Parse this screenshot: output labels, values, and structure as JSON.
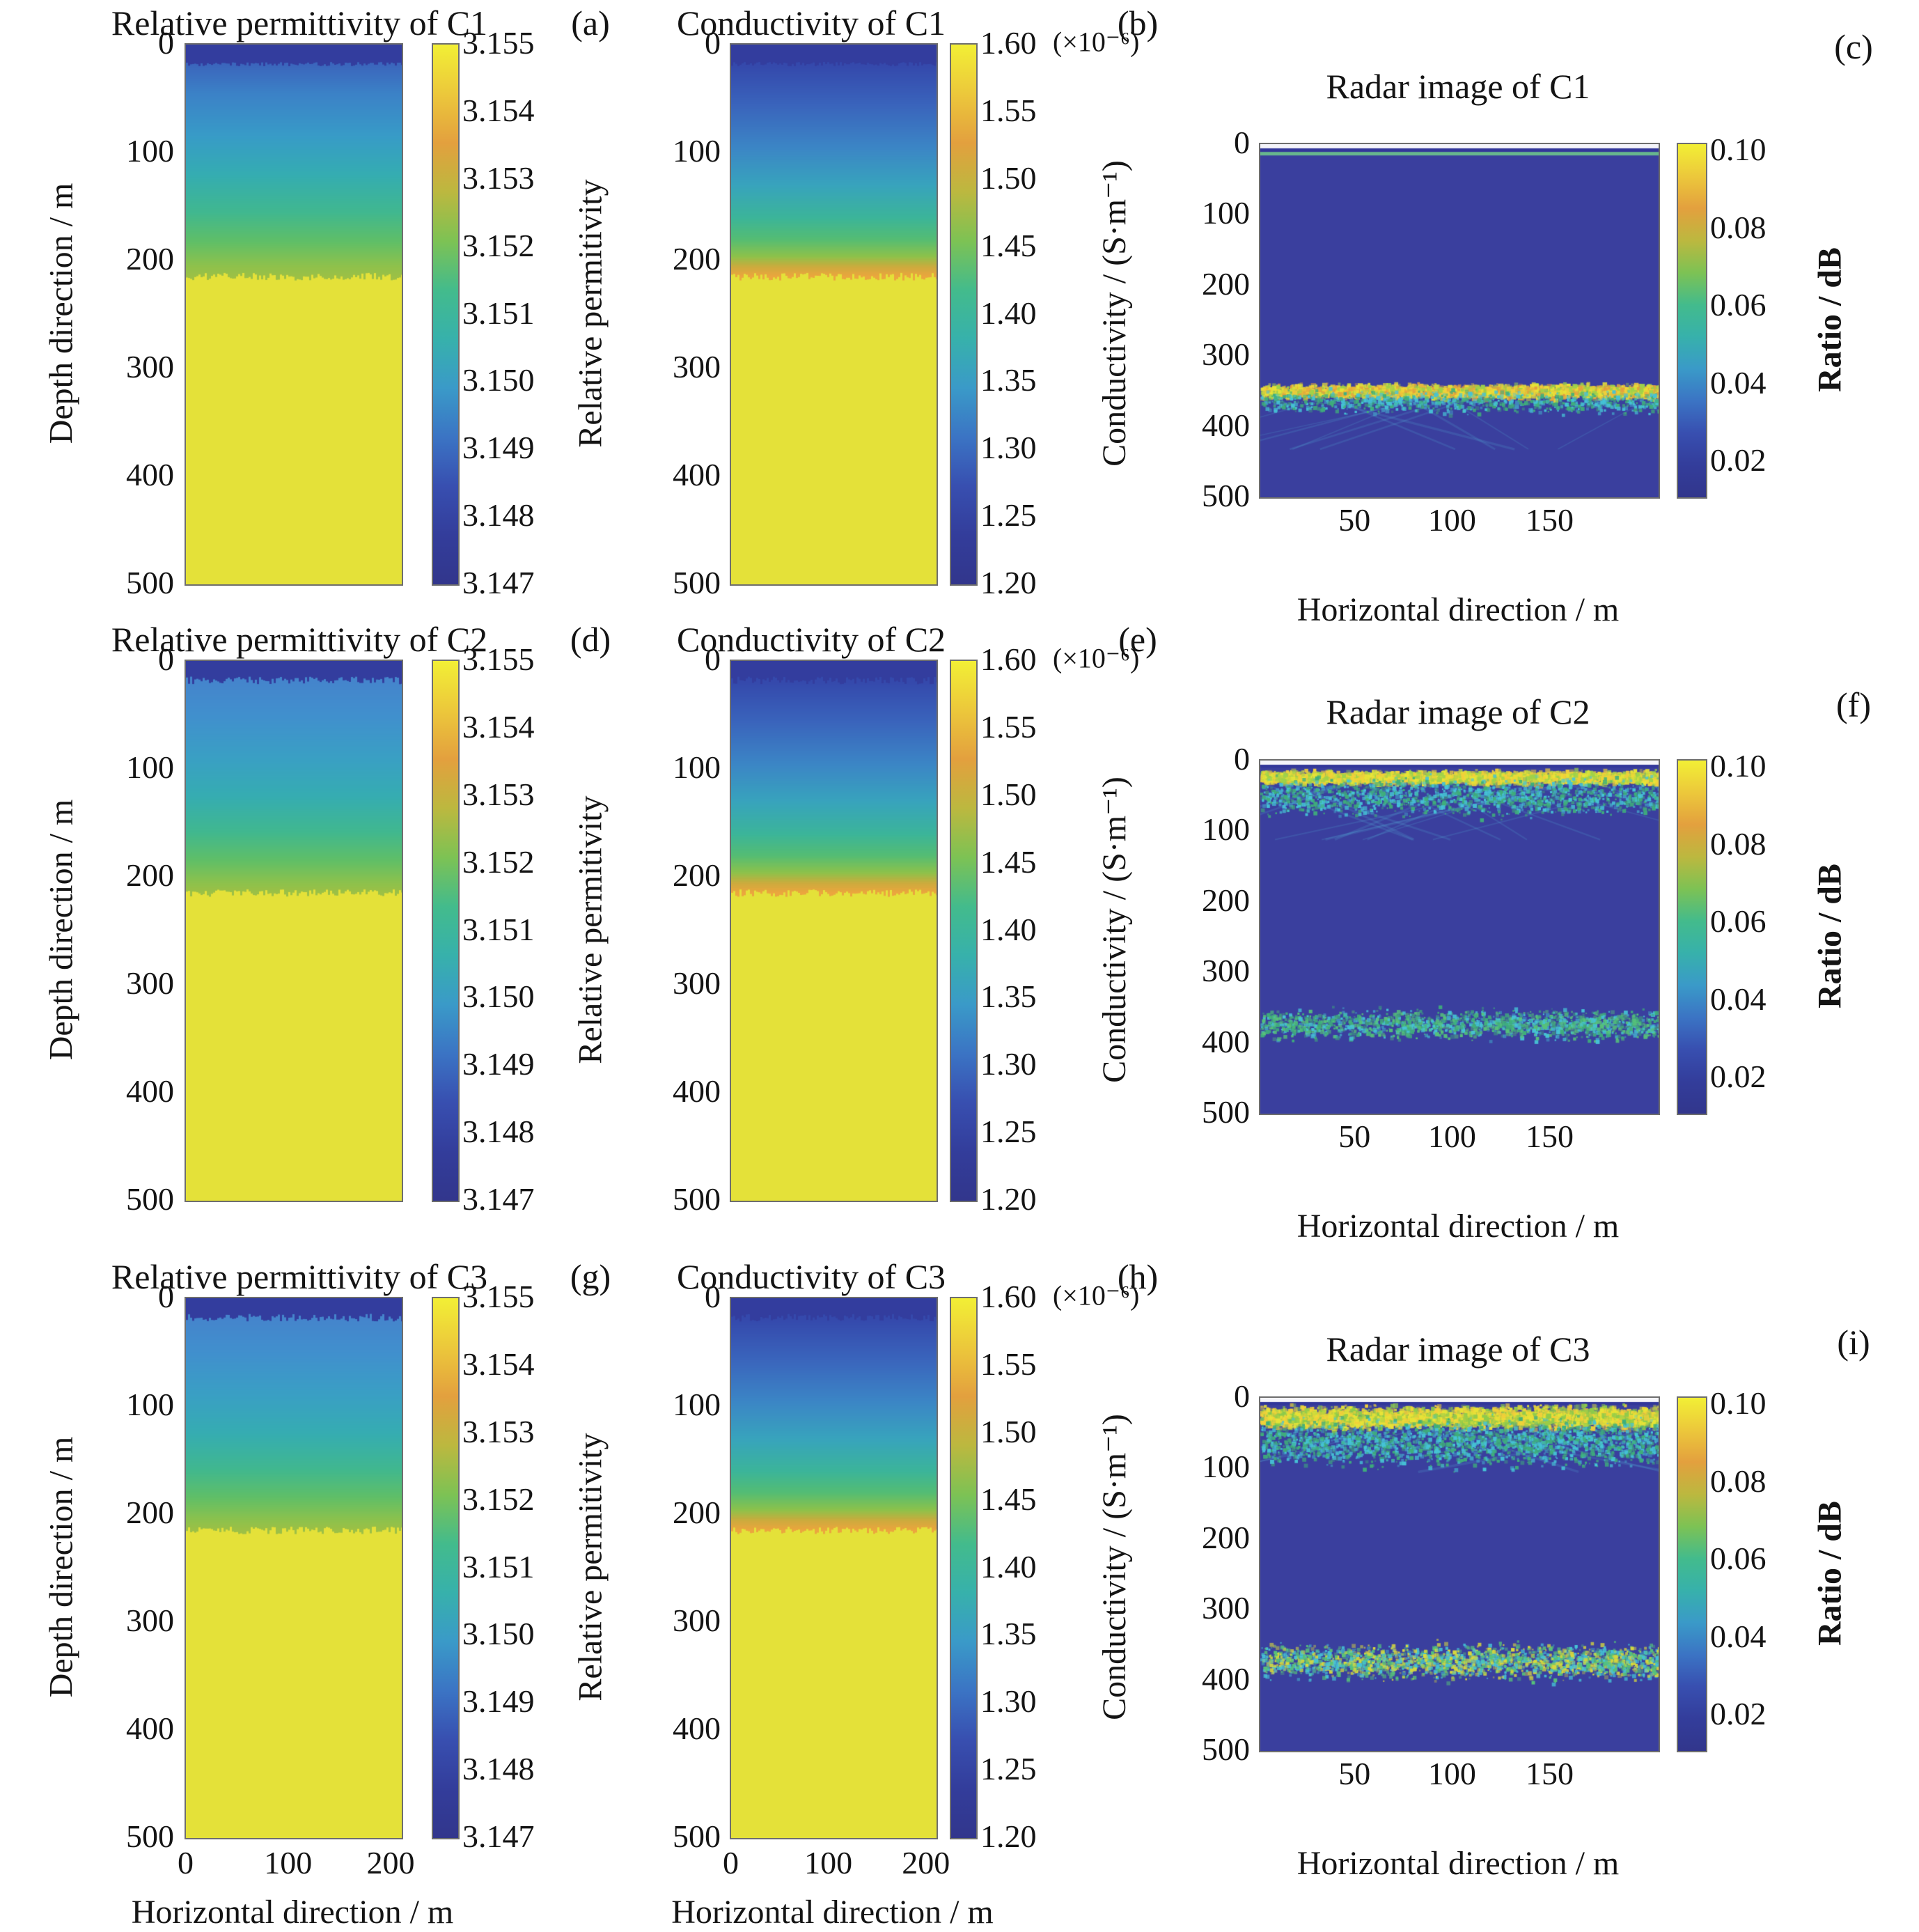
{
  "figure": {
    "background": "#ffffff",
    "description": "3x3 grid of simulated subsurface model heatmaps and radar images for cases C1, C2, C3"
  },
  "colormap": [
    "#f2ef35",
    "#ecc83b",
    "#e3a03e",
    "#bcb83f",
    "#7dc254",
    "#43bb8c",
    "#37b1ab",
    "#3a9ac8",
    "#3b74c4",
    "#384fb0",
    "#333d9b",
    "#32368c"
  ],
  "chart_data": [
    {
      "panel_letter": "(a)",
      "title": "Relative permittivity of C1",
      "type": "heatmap",
      "grid": {
        "row": 0,
        "col": 0
      },
      "x_axis": {
        "label": "Horizontal direction / m",
        "range": [
          0,
          200
        ],
        "tick_labels": [
          "0",
          "100",
          "200"
        ],
        "labels_visible": false
      },
      "y_axis": {
        "label": "Depth direction / m",
        "range": [
          0,
          500
        ],
        "tick_labels": [
          "0",
          "100",
          "200",
          "300",
          "400",
          "500"
        ],
        "label_visible": true
      },
      "colorbar": {
        "label": "Relative permitivity",
        "range": [
          3.147,
          3.155
        ],
        "tick_labels": [
          "3.155",
          "3.154",
          "3.153",
          "3.152",
          "3.151",
          "3.150",
          "3.149",
          "3.148",
          "3.147"
        ],
        "scale_note": ""
      },
      "field": {
        "top_layer": {
          "depth_m": [
            0,
            18
          ],
          "value": 3.147,
          "color": "#333d9e",
          "jitter_m": 4
        },
        "gradient_stops": [
          [
            18,
            "#3b66bd"
          ],
          [
            45,
            "#3c82c7"
          ],
          [
            85,
            "#389cc7"
          ],
          [
            120,
            "#35adb2"
          ],
          [
            155,
            "#41b890"
          ],
          [
            182,
            "#60bf68"
          ],
          [
            205,
            "#8fc24c"
          ],
          [
            214,
            "#9cc046"
          ]
        ],
        "bottom_layer": {
          "depth_m": [
            215,
            500
          ],
          "value": 3.155,
          "color": "#e4e139",
          "jitter_m": 7
        }
      }
    },
    {
      "panel_letter": "(b)",
      "title": "Conductivity of C1",
      "type": "heatmap",
      "grid": {
        "row": 0,
        "col": 1
      },
      "x_axis": {
        "label": "Horizontal direction / m",
        "range": [
          0,
          200
        ],
        "tick_labels": [
          "0",
          "100",
          "200"
        ],
        "labels_visible": false
      },
      "y_axis": {
        "label": "",
        "range": [
          0,
          500
        ],
        "tick_labels": [
          "0",
          "100",
          "200",
          "300",
          "400",
          "500"
        ],
        "label_visible": false
      },
      "colorbar": {
        "label": "Conductivity / (S·m⁻¹)",
        "range": [
          1.2e-06,
          1.6e-06
        ],
        "tick_labels": [
          "1.60",
          "1.55",
          "1.50",
          "1.45",
          "1.40",
          "1.35",
          "1.30",
          "1.25",
          "1.20"
        ],
        "scale_note": "(×10⁻⁶)"
      },
      "field": {
        "top_layer": {
          "depth_m": [
            0,
            18
          ],
          "value": 1.2e-06,
          "color": "#333d9e",
          "jitter_m": 4
        },
        "gradient_stops": [
          [
            18,
            "#3549ac"
          ],
          [
            55,
            "#3a64bc"
          ],
          [
            95,
            "#3c86c6"
          ],
          [
            130,
            "#38a4bd"
          ],
          [
            160,
            "#3cb59a"
          ],
          [
            180,
            "#55bd74"
          ],
          [
            196,
            "#8ec24b"
          ],
          [
            206,
            "#cfab3d"
          ],
          [
            214,
            "#eba63e"
          ]
        ],
        "bottom_layer": {
          "depth_m": [
            215,
            500
          ],
          "value": 1.6e-06,
          "color": "#e4e139",
          "jitter_m": 7
        }
      }
    },
    {
      "panel_letter": "(c)",
      "title": "Radar image of C1",
      "type": "radar-heatmap",
      "grid": {
        "row": 0,
        "col": 2
      },
      "x_axis": {
        "label": "Horizontal direction / m",
        "range": [
          0,
          200
        ],
        "tick_labels": [
          "50",
          "100",
          "150"
        ],
        "labels_visible": true
      },
      "y_axis": {
        "label": "",
        "range": [
          0,
          500
        ],
        "tick_labels": [
          "0",
          "100",
          "200",
          "300",
          "400",
          "500"
        ],
        "label_visible": false
      },
      "colorbar": {
        "label": "Ratio / dB",
        "range": [
          0.005,
          0.105
        ],
        "tick_labels": [
          "0.10",
          "0.08",
          "0.06",
          "0.04",
          "0.02"
        ],
        "scale_note": ""
      },
      "field": {
        "background_color": "#3a3f9e",
        "surface_strips": [
          {
            "depth_m": [
              0,
              6
            ],
            "color": "#f4f4fa"
          },
          {
            "depth_m": [
              6,
              11
            ],
            "color": "#32379a"
          },
          {
            "depth_m": [
              11,
              16
            ],
            "color": "#67b78d"
          }
        ],
        "reflection_bands": [
          {
            "depth_center_m": 348,
            "half_width_m": 9,
            "colors": [
              "#e8e437",
              "#f2cf3a",
              "#9ed24a",
              "#e3a03e"
            ],
            "dots": 2800,
            "dot_size": 5
          },
          {
            "depth_center_m": 363,
            "half_width_m": 16,
            "colors": [
              "#46c3d6",
              "#3fae7b"
            ],
            "dots": 900,
            "dot_size": 4
          }
        ],
        "diffraction_tails": {
          "depth_range_m": [
            358,
            432
          ],
          "count": 14
        }
      }
    },
    {
      "panel_letter": "(d)",
      "title": "Relative permittivity of C2",
      "type": "heatmap",
      "grid": {
        "row": 1,
        "col": 0
      },
      "x_axis": {
        "label": "Horizontal direction / m",
        "range": [
          0,
          200
        ],
        "tick_labels": [
          "0",
          "100",
          "200"
        ],
        "labels_visible": false
      },
      "y_axis": {
        "label": "Depth direction / m",
        "range": [
          0,
          500
        ],
        "tick_labels": [
          "0",
          "100",
          "200",
          "300",
          "400",
          "500"
        ],
        "label_visible": true
      },
      "colorbar": {
        "label": "Relative permitivity",
        "range": [
          3.147,
          3.155
        ],
        "tick_labels": [
          "3.155",
          "3.154",
          "3.153",
          "3.152",
          "3.151",
          "3.150",
          "3.149",
          "3.148",
          "3.147"
        ],
        "scale_note": ""
      },
      "field": {
        "top_layer": {
          "depth_m": [
            0,
            18
          ],
          "value": 3.147,
          "color": "#333d9e",
          "jitter_m": 7
        },
        "gradient_stops": [
          [
            18,
            "#4585cc"
          ],
          [
            50,
            "#4190ce"
          ],
          [
            90,
            "#3aa0c4"
          ],
          [
            125,
            "#36adb2"
          ],
          [
            158,
            "#41b890"
          ],
          [
            184,
            "#60bf68"
          ],
          [
            206,
            "#8fc24c"
          ],
          [
            214,
            "#9cc046"
          ]
        ],
        "bottom_layer": {
          "depth_m": [
            215,
            500
          ],
          "value": 3.155,
          "color": "#e4e139",
          "jitter_m": 7
        }
      }
    },
    {
      "panel_letter": "(e)",
      "title": "Conductivity of C2",
      "type": "heatmap",
      "grid": {
        "row": 1,
        "col": 1
      },
      "x_axis": {
        "label": "Horizontal direction / m",
        "range": [
          0,
          200
        ],
        "tick_labels": [
          "0",
          "100",
          "200"
        ],
        "labels_visible": false
      },
      "y_axis": {
        "label": "",
        "range": [
          0,
          500
        ],
        "tick_labels": [
          "0",
          "100",
          "200",
          "300",
          "400",
          "500"
        ],
        "label_visible": false
      },
      "colorbar": {
        "label": "Conductivity / (S·m⁻¹)",
        "range": [
          1.2e-06,
          1.6e-06
        ],
        "tick_labels": [
          "1.60",
          "1.55",
          "1.50",
          "1.45",
          "1.40",
          "1.35",
          "1.30",
          "1.25",
          "1.20"
        ],
        "scale_note": "(×10⁻⁶)"
      },
      "field": {
        "top_layer": {
          "depth_m": [
            0,
            18
          ],
          "value": 1.2e-06,
          "color": "#333d9e",
          "jitter_m": 7
        },
        "gradient_stops": [
          [
            18,
            "#3549ac"
          ],
          [
            55,
            "#3a64bc"
          ],
          [
            95,
            "#3c86c6"
          ],
          [
            130,
            "#38a4bd"
          ],
          [
            160,
            "#3cb59a"
          ],
          [
            180,
            "#55bd74"
          ],
          [
            196,
            "#8ec24b"
          ],
          [
            206,
            "#cfab3d"
          ],
          [
            214,
            "#eba63e"
          ]
        ],
        "bottom_layer": {
          "depth_m": [
            215,
            500
          ],
          "value": 1.6e-06,
          "color": "#e4e139",
          "jitter_m": 7
        }
      }
    },
    {
      "panel_letter": "(f)",
      "title": "Radar image of C2",
      "type": "radar-heatmap",
      "grid": {
        "row": 1,
        "col": 2
      },
      "x_axis": {
        "label": "Horizontal direction / m",
        "range": [
          0,
          200
        ],
        "tick_labels": [
          "50",
          "100",
          "150"
        ],
        "labels_visible": true
      },
      "y_axis": {
        "label": "",
        "range": [
          0,
          500
        ],
        "tick_labels": [
          "0",
          "100",
          "200",
          "300",
          "400",
          "500"
        ],
        "label_visible": false
      },
      "colorbar": {
        "label": "Ratio / dB",
        "range": [
          0.005,
          0.105
        ],
        "tick_labels": [
          "0.10",
          "0.08",
          "0.06",
          "0.04",
          "0.02"
        ],
        "scale_note": ""
      },
      "field": {
        "background_color": "#3a3f9e",
        "surface_strips": [
          {
            "depth_m": [
              0,
              6
            ],
            "color": "#f4f4fa"
          },
          {
            "depth_m": [
              6,
              10
            ],
            "color": "#32379a"
          }
        ],
        "reflection_bands": [
          {
            "depth_center_m": 22,
            "half_width_m": 9,
            "colors": [
              "#e8e437",
              "#f2cf3a",
              "#9ed24a"
            ],
            "dots": 2500,
            "dot_size": 5
          },
          {
            "depth_center_m": 50,
            "half_width_m": 26,
            "colors": [
              "#46c3d6",
              "#3fae7b"
            ],
            "dots": 1500,
            "dot_size": 4
          },
          {
            "depth_center_m": 372,
            "half_width_m": 20,
            "colors": [
              "#46c3d6",
              "#57c27a",
              "#3fae7b"
            ],
            "dots": 1700,
            "dot_size": 4
          }
        ],
        "diffraction_tails": {
          "depth_range_m": [
            28,
            112
          ],
          "count": 18
        }
      }
    },
    {
      "panel_letter": "(g)",
      "title": "Relative permittivity of C3",
      "type": "heatmap",
      "grid": {
        "row": 2,
        "col": 0
      },
      "x_axis": {
        "label": "Horizontal direction / m",
        "range": [
          0,
          200
        ],
        "tick_labels": [
          "0",
          "100",
          "200"
        ],
        "labels_visible": true
      },
      "y_axis": {
        "label": "Depth direction / m",
        "range": [
          0,
          500
        ],
        "tick_labels": [
          "0",
          "100",
          "200",
          "300",
          "400",
          "500"
        ],
        "label_visible": true
      },
      "colorbar": {
        "label": "Relative permitivity",
        "range": [
          3.147,
          3.155
        ],
        "tick_labels": [
          "3.155",
          "3.154",
          "3.153",
          "3.152",
          "3.151",
          "3.150",
          "3.149",
          "3.148",
          "3.147"
        ],
        "scale_note": ""
      },
      "field": {
        "top_layer": {
          "depth_m": [
            0,
            18
          ],
          "value": 3.147,
          "color": "#333d9e",
          "jitter_m": 7
        },
        "gradient_stops": [
          [
            18,
            "#4585cc"
          ],
          [
            50,
            "#4190ce"
          ],
          [
            90,
            "#3aa0c4"
          ],
          [
            125,
            "#36adb2"
          ],
          [
            158,
            "#41b890"
          ],
          [
            184,
            "#60bf68"
          ],
          [
            206,
            "#8fc24c"
          ],
          [
            214,
            "#9cc046"
          ]
        ],
        "bottom_layer": {
          "depth_m": [
            215,
            500
          ],
          "value": 3.155,
          "color": "#e4e139",
          "jitter_m": 7
        }
      }
    },
    {
      "panel_letter": "(h)",
      "title": "Conductivity of C3",
      "type": "heatmap",
      "grid": {
        "row": 2,
        "col": 1
      },
      "x_axis": {
        "label": "Horizontal direction / m",
        "range": [
          0,
          200
        ],
        "tick_labels": [
          "0",
          "100",
          "200"
        ],
        "labels_visible": true
      },
      "y_axis": {
        "label": "",
        "range": [
          0,
          500
        ],
        "tick_labels": [
          "0",
          "100",
          "200",
          "300",
          "400",
          "500"
        ],
        "label_visible": false
      },
      "colorbar": {
        "label": "Conductivity / (S·m⁻¹)",
        "range": [
          1.2e-06,
          1.6e-06
        ],
        "tick_labels": [
          "1.60",
          "1.55",
          "1.50",
          "1.45",
          "1.40",
          "1.35",
          "1.30",
          "1.25",
          "1.20"
        ],
        "scale_note": "(×10⁻⁶)"
      },
      "field": {
        "top_layer": {
          "depth_m": [
            0,
            18
          ],
          "value": 1.2e-06,
          "color": "#333d9e",
          "jitter_m": 7
        },
        "gradient_stops": [
          [
            18,
            "#3549ac"
          ],
          [
            55,
            "#3a64bc"
          ],
          [
            95,
            "#3c86c6"
          ],
          [
            130,
            "#38a4bd"
          ],
          [
            160,
            "#3cb59a"
          ],
          [
            180,
            "#55bd74"
          ],
          [
            196,
            "#8ec24b"
          ],
          [
            206,
            "#cfab3d"
          ],
          [
            214,
            "#eba63e"
          ]
        ],
        "bottom_layer": {
          "depth_m": [
            215,
            500
          ],
          "value": 1.6e-06,
          "color": "#e4e139",
          "jitter_m": 7
        }
      }
    },
    {
      "panel_letter": "(i)",
      "title": "Radar image of C3",
      "type": "radar-heatmap",
      "grid": {
        "row": 2,
        "col": 2
      },
      "x_axis": {
        "label": "Horizontal direction / m",
        "range": [
          0,
          200
        ],
        "tick_labels": [
          "50",
          "100",
          "150"
        ],
        "labels_visible": true
      },
      "y_axis": {
        "label": "",
        "range": [
          0,
          500
        ],
        "tick_labels": [
          "0",
          "100",
          "200",
          "300",
          "400",
          "500"
        ],
        "label_visible": false
      },
      "colorbar": {
        "label": "Ratio / dB",
        "range": [
          0.005,
          0.105
        ],
        "tick_labels": [
          "0.10",
          "0.08",
          "0.06",
          "0.04",
          "0.02"
        ],
        "scale_note": ""
      },
      "field": {
        "background_color": "#3a3f9e",
        "surface_strips": [
          {
            "depth_m": [
              0,
              6
            ],
            "color": "#f4f4fa"
          },
          {
            "depth_m": [
              6,
              10
            ],
            "color": "#32379a"
          }
        ],
        "reflection_bands": [
          {
            "depth_center_m": 26,
            "half_width_m": 15,
            "colors": [
              "#e8e437",
              "#8ecb4b",
              "#f2cf3a"
            ],
            "dots": 3300,
            "dot_size": 5
          },
          {
            "depth_center_m": 62,
            "half_width_m": 32,
            "colors": [
              "#46c3d6",
              "#3fae7b"
            ],
            "dots": 2100,
            "dot_size": 4
          },
          {
            "depth_center_m": 372,
            "half_width_m": 24,
            "colors": [
              "#46c3d6",
              "#57c27a",
              "#d9d93c"
            ],
            "dots": 2300,
            "dot_size": 4
          }
        ],
        "diffraction_tails": {
          "depth_range_m": [
            40,
            105
          ],
          "count": 6
        }
      }
    }
  ]
}
